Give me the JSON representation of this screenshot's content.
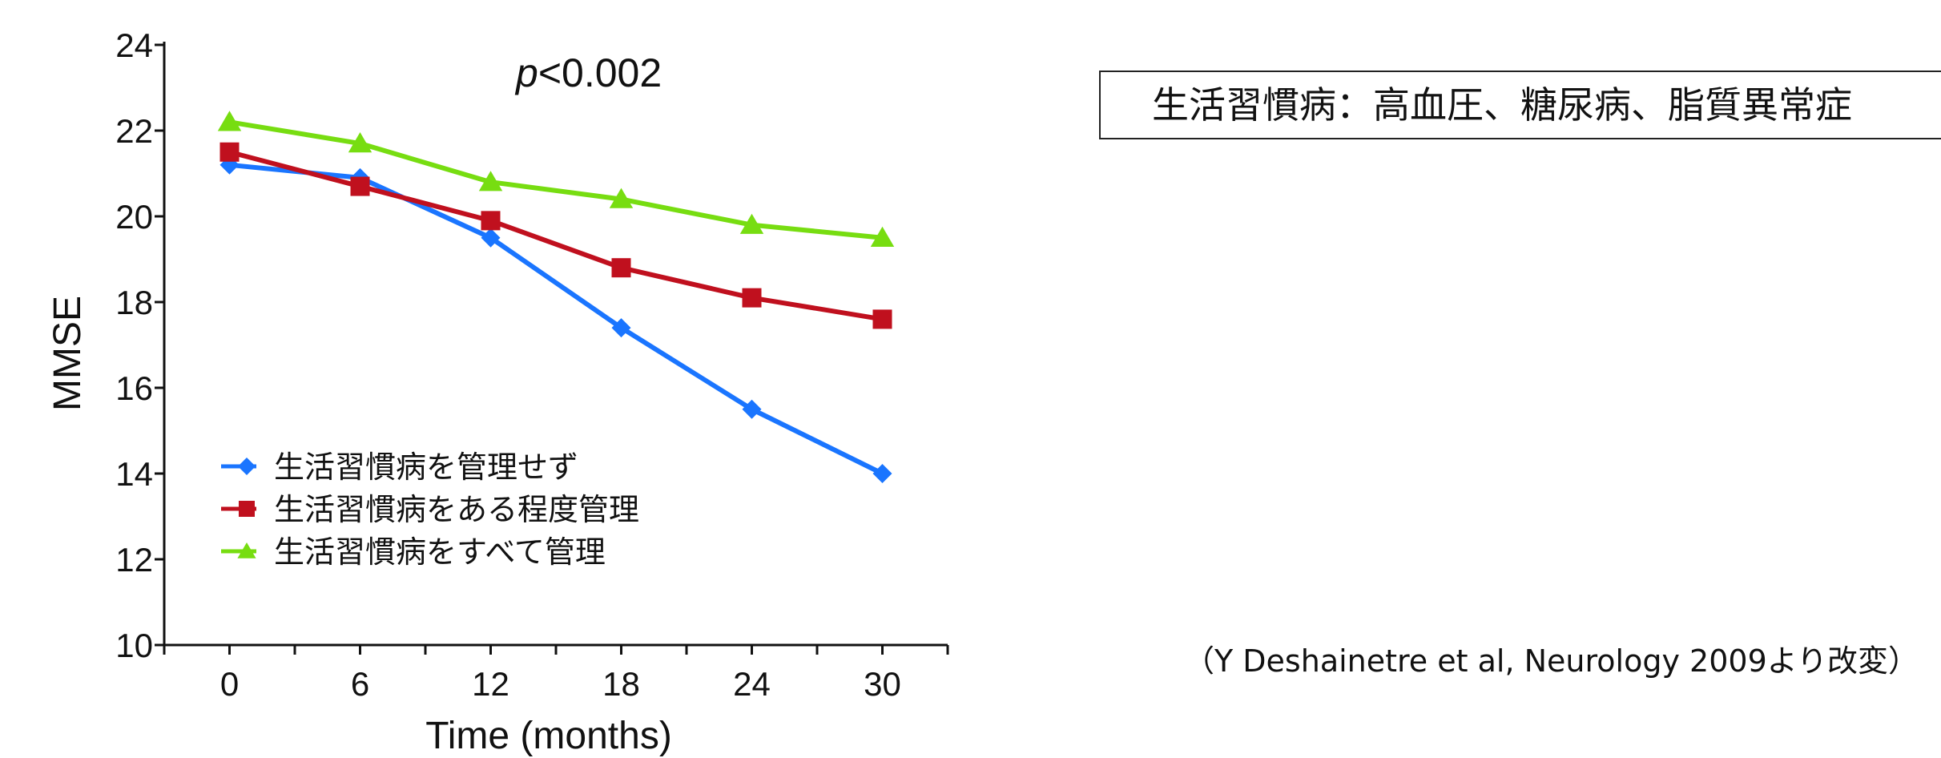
{
  "info_box": "生活習慣病：高血圧、糖尿病、脂質異常症",
  "source_note": "（Y Deshainetre et al, Neurology 2009より改変）",
  "chart_data": {
    "type": "line",
    "annotation": "<0.002",
    "annotation_prefix": "p",
    "xlabel": "Time (months)",
    "ylabel": "MMSE",
    "x": [
      0,
      6,
      12,
      18,
      24,
      30
    ],
    "xlim": [
      -3,
      33
    ],
    "ylim": [
      10,
      24
    ],
    "xticks": [
      0,
      6,
      12,
      18,
      24,
      30
    ],
    "yticks": [
      10,
      12,
      14,
      16,
      18,
      20,
      22,
      24
    ],
    "grid": false,
    "legend_position": "lower-left",
    "series": [
      {
        "name": "生活習慣病を管理せず",
        "color": "#1a75ff",
        "marker": "diamond",
        "values": [
          21.2,
          20.9,
          19.5,
          17.4,
          15.5,
          14.0
        ]
      },
      {
        "name": "生活習慣病をある程度管理",
        "color": "#c0101e",
        "marker": "square",
        "values": [
          21.5,
          20.7,
          19.9,
          18.8,
          18.1,
          17.6
        ]
      },
      {
        "name": "生活習慣病をすべて管理",
        "color": "#77dd11",
        "marker": "triangle",
        "values": [
          22.2,
          21.7,
          20.8,
          20.4,
          19.8,
          19.5
        ]
      }
    ]
  }
}
